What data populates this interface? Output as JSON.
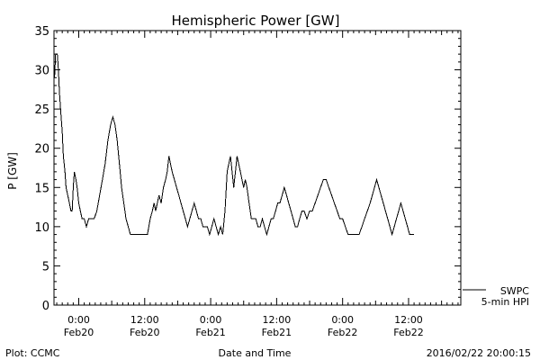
{
  "chart_data": {
    "type": "line",
    "title": "Hemispheric Power [GW]",
    "ylabel": "P [GW]",
    "xlabel": "Date and Time",
    "ylim": [
      0,
      35
    ],
    "xlim": [
      -4.5,
      69.5
    ],
    "x_unit": "hours since 2016-02-20 00:00",
    "y_ticks": [
      0,
      5,
      10,
      15,
      20,
      25,
      30,
      35
    ],
    "x_ticks": [
      {
        "x": 0,
        "time": "0:00",
        "date": "Feb20"
      },
      {
        "x": 12,
        "time": "12:00",
        "date": "Feb20"
      },
      {
        "x": 24,
        "time": "0:00",
        "date": "Feb21"
      },
      {
        "x": 36,
        "time": "12:00",
        "date": "Feb21"
      },
      {
        "x": 48,
        "time": "0:00",
        "date": "Feb22"
      },
      {
        "x": 60,
        "time": "12:00",
        "date": "Feb22"
      }
    ],
    "grid": false,
    "legend": {
      "placement": "bottom-right",
      "source": "SWPC",
      "entry": "5-min HPI"
    },
    "series": [
      {
        "name": "5-min HPI",
        "points": [
          [
            -4.4,
            29
          ],
          [
            -4.2,
            32
          ],
          [
            -3.9,
            32
          ],
          [
            -3.7,
            30
          ],
          [
            -3.5,
            27
          ],
          [
            -3.3,
            25
          ],
          [
            -3.0,
            22
          ],
          [
            -2.8,
            19
          ],
          [
            -2.5,
            17
          ],
          [
            -2.3,
            15
          ],
          [
            -2.0,
            14
          ],
          [
            -1.7,
            13
          ],
          [
            -1.4,
            12
          ],
          [
            -1.2,
            12
          ],
          [
            -1.0,
            15
          ],
          [
            -0.8,
            17
          ],
          [
            -0.5,
            16
          ],
          [
            -0.3,
            15
          ],
          [
            0.0,
            13
          ],
          [
            0.3,
            12
          ],
          [
            0.6,
            11
          ],
          [
            1.0,
            11
          ],
          [
            1.4,
            10
          ],
          [
            1.8,
            11
          ],
          [
            2.2,
            11
          ],
          [
            2.8,
            11
          ],
          [
            3.3,
            12
          ],
          [
            3.8,
            14
          ],
          [
            4.3,
            16
          ],
          [
            4.8,
            18
          ],
          [
            5.3,
            21
          ],
          [
            5.8,
            23
          ],
          [
            6.2,
            24
          ],
          [
            6.6,
            23
          ],
          [
            7.0,
            21
          ],
          [
            7.4,
            18
          ],
          [
            7.8,
            15
          ],
          [
            8.2,
            13
          ],
          [
            8.6,
            11
          ],
          [
            9.0,
            10
          ],
          [
            9.4,
            9
          ],
          [
            10.5,
            9
          ],
          [
            11.5,
            9
          ],
          [
            12.5,
            9
          ],
          [
            13.0,
            11
          ],
          [
            13.4,
            12
          ],
          [
            13.7,
            13
          ],
          [
            14.0,
            12
          ],
          [
            14.3,
            13
          ],
          [
            14.6,
            14
          ],
          [
            15.0,
            13
          ],
          [
            15.4,
            15
          ],
          [
            15.8,
            16
          ],
          [
            16.1,
            17
          ],
          [
            16.4,
            19
          ],
          [
            16.7,
            18
          ],
          [
            17.0,
            17
          ],
          [
            17.4,
            16
          ],
          [
            17.8,
            15
          ],
          [
            18.2,
            14
          ],
          [
            18.6,
            13
          ],
          [
            19.0,
            12
          ],
          [
            19.4,
            11
          ],
          [
            19.8,
            10
          ],
          [
            20.2,
            11
          ],
          [
            20.6,
            12
          ],
          [
            21.0,
            13
          ],
          [
            21.4,
            12
          ],
          [
            21.8,
            11
          ],
          [
            22.2,
            11
          ],
          [
            22.6,
            10
          ],
          [
            23.0,
            10
          ],
          [
            23.4,
            10
          ],
          [
            23.8,
            9
          ],
          [
            24.2,
            10
          ],
          [
            24.6,
            11
          ],
          [
            25.0,
            10
          ],
          [
            25.4,
            9
          ],
          [
            25.8,
            10
          ],
          [
            26.2,
            9
          ],
          [
            26.6,
            12
          ],
          [
            27.0,
            17
          ],
          [
            27.3,
            18
          ],
          [
            27.6,
            19
          ],
          [
            27.9,
            17
          ],
          [
            28.2,
            15
          ],
          [
            28.5,
            17
          ],
          [
            28.8,
            19
          ],
          [
            29.1,
            18
          ],
          [
            29.4,
            17
          ],
          [
            29.7,
            16
          ],
          [
            30.0,
            15
          ],
          [
            30.3,
            16
          ],
          [
            30.6,
            15
          ],
          [
            31.0,
            13
          ],
          [
            31.4,
            11
          ],
          [
            31.8,
            11
          ],
          [
            32.2,
            11
          ],
          [
            32.6,
            10
          ],
          [
            33.0,
            10
          ],
          [
            33.4,
            11
          ],
          [
            33.8,
            10
          ],
          [
            34.2,
            9
          ],
          [
            34.6,
            10
          ],
          [
            35.0,
            11
          ],
          [
            35.4,
            11
          ],
          [
            35.8,
            12
          ],
          [
            36.2,
            13
          ],
          [
            36.6,
            13
          ],
          [
            37.0,
            14
          ],
          [
            37.4,
            15
          ],
          [
            37.8,
            14
          ],
          [
            38.2,
            13
          ],
          [
            38.6,
            12
          ],
          [
            39.0,
            11
          ],
          [
            39.4,
            10
          ],
          [
            39.8,
            10
          ],
          [
            40.2,
            11
          ],
          [
            40.6,
            12
          ],
          [
            41.0,
            12
          ],
          [
            41.5,
            11
          ],
          [
            42.0,
            12
          ],
          [
            42.5,
            12
          ],
          [
            43.0,
            13
          ],
          [
            43.5,
            14
          ],
          [
            44.0,
            15
          ],
          [
            44.5,
            16
          ],
          [
            45.0,
            16
          ],
          [
            45.5,
            15
          ],
          [
            46.0,
            14
          ],
          [
            46.5,
            13
          ],
          [
            47.0,
            12
          ],
          [
            47.5,
            11
          ],
          [
            48.0,
            11
          ],
          [
            48.5,
            10
          ],
          [
            49.0,
            9
          ],
          [
            50.0,
            9
          ],
          [
            51.0,
            9
          ],
          [
            51.5,
            10
          ],
          [
            52.0,
            11
          ],
          [
            52.5,
            12
          ],
          [
            53.0,
            13
          ],
          [
            53.4,
            14
          ],
          [
            53.8,
            15
          ],
          [
            54.2,
            16
          ],
          [
            54.6,
            15
          ],
          [
            55.0,
            14
          ],
          [
            55.4,
            13
          ],
          [
            55.8,
            12
          ],
          [
            56.2,
            11
          ],
          [
            56.6,
            10
          ],
          [
            57.0,
            9
          ],
          [
            57.4,
            10
          ],
          [
            57.8,
            11
          ],
          [
            58.2,
            12
          ],
          [
            58.6,
            13
          ],
          [
            59.0,
            12
          ],
          [
            59.4,
            11
          ],
          [
            59.8,
            10
          ],
          [
            60.2,
            9
          ],
          [
            61.0,
            9
          ]
        ]
      }
    ]
  },
  "footer": {
    "plot_credit": "Plot: CCMC",
    "timestamp": "2016/02/22 20:00:15"
  }
}
